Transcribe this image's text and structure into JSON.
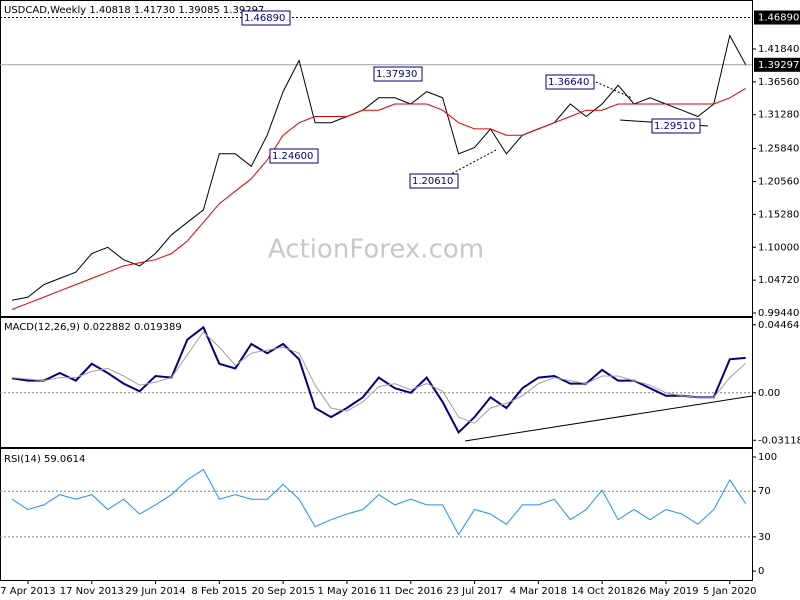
{
  "chart_data": [
    {
      "type": "line",
      "title": "USDCAD,Weekly  1.40818 1.41730 1.39085 1.39297",
      "watermark": "ActionForex.com",
      "categories": [
        null,
        "7 Apr 2013",
        null,
        null,
        null,
        "17 Nov 2013",
        null,
        null,
        null,
        "29 Jun 2014",
        null,
        null,
        null,
        "8 Feb 2015",
        null,
        null,
        null,
        "20 Sep 2015",
        null,
        null,
        null,
        "1 May 2016",
        null,
        null,
        null,
        "11 Dec 2016",
        null,
        null,
        null,
        "23 Jul 2017",
        null,
        null,
        null,
        "4 Mar 2018",
        null,
        null,
        null,
        "14 Oct 2018",
        null,
        null,
        null,
        "26 May 2019",
        null,
        null,
        null,
        "5 Jan 2020",
        null
      ],
      "series": [
        {
          "color": "#000000",
          "values": [
            1.015,
            1.02,
            1.04,
            1.05,
            1.06,
            1.09,
            1.1,
            1.08,
            1.07,
            1.09,
            1.12,
            1.14,
            1.16,
            1.25,
            1.25,
            1.23,
            1.28,
            1.35,
            1.4,
            1.3,
            1.3,
            1.31,
            1.32,
            1.34,
            1.34,
            1.33,
            1.35,
            1.34,
            1.25,
            1.26,
            1.29,
            1.25,
            1.28,
            1.29,
            1.3,
            1.33,
            1.31,
            1.33,
            1.36,
            1.33,
            1.34,
            1.33,
            1.32,
            1.31,
            1.33,
            1.44,
            1.39297
          ]
        },
        {
          "color": "#e00000",
          "values": [
            1.0,
            1.01,
            1.02,
            1.03,
            1.04,
            1.05,
            1.06,
            1.07,
            1.075,
            1.08,
            1.09,
            1.11,
            1.14,
            1.17,
            1.19,
            1.21,
            1.24,
            1.28,
            1.3,
            1.31,
            1.31,
            1.31,
            1.32,
            1.32,
            1.33,
            1.33,
            1.33,
            1.32,
            1.3,
            1.29,
            1.29,
            1.28,
            1.28,
            1.29,
            1.3,
            1.31,
            1.32,
            1.32,
            1.33,
            1.33,
            1.33,
            1.33,
            1.33,
            1.33,
            1.33,
            1.34,
            1.355
          ]
        }
      ],
      "ylim": [
        0.988,
        1.489
      ],
      "yticks": [
        {
          "value": 0.9944,
          "label": "0.99440"
        },
        {
          "value": 1.0472,
          "label": "1.04720"
        },
        {
          "value": 1.1,
          "label": "1.10000"
        },
        {
          "value": 1.1528,
          "label": "1.15280"
        },
        {
          "value": 1.2056,
          "label": "1.20560"
        },
        {
          "value": 1.2584,
          "label": "1.25840"
        },
        {
          "value": 1.3128,
          "label": "1.31280"
        },
        {
          "value": 1.3656,
          "label": "1.36560"
        },
        {
          "value": 1.4184,
          "label": "1.41840"
        }
      ],
      "highlight_ticks": [
        {
          "value": 1.4689,
          "label": "1.46890"
        },
        {
          "value": 1.39297,
          "label": "1.39297"
        }
      ],
      "annotations": [
        "1.46890",
        "1.37930",
        "1.36640",
        "1.24600",
        "1.20610",
        "1.29510"
      ],
      "grid": false
    },
    {
      "type": "line",
      "title": "MACD(12,26,9) 0.022882 0.019389",
      "series": [
        {
          "color": "#000080",
          "values": [
            0.0096,
            0.008,
            0.008,
            0.013,
            0.008,
            0.019,
            0.013,
            0.006,
            0.001,
            0.011,
            0.01,
            0.035,
            0.043,
            0.019,
            0.016,
            0.032,
            0.026,
            0.032,
            0.022,
            -0.01,
            -0.016,
            -0.01,
            -0.003,
            0.01,
            0.003,
            0.0,
            0.01,
            -0.006,
            -0.026,
            -0.016,
            -0.003,
            -0.01,
            0.003,
            0.01,
            0.011,
            0.006,
            0.006,
            0.015,
            0.008,
            0.008,
            0.003,
            -0.002,
            -0.002,
            -0.003,
            -0.003,
            0.022,
            0.022882
          ]
        },
        {
          "color": "#a0a0a0",
          "values": [
            0.01,
            0.009,
            0.008,
            0.01,
            0.01,
            0.014,
            0.016,
            0.011,
            0.005,
            0.007,
            0.01,
            0.025,
            0.04,
            0.03,
            0.018,
            0.026,
            0.028,
            0.03,
            0.026,
            0.005,
            -0.01,
            -0.012,
            -0.006,
            0.004,
            0.006,
            0.002,
            0.006,
            0.001,
            -0.016,
            -0.02,
            -0.01,
            -0.007,
            -0.002,
            0.006,
            0.01,
            0.008,
            0.006,
            0.011,
            0.011,
            0.008,
            0.005,
            0.0,
            -0.002,
            -0.003,
            -0.003,
            0.01,
            0.019389
          ]
        }
      ],
      "ylim": [
        -0.0356,
        0.0491
      ],
      "yticks": [
        0.044642,
        {
          "value": 0,
          "label": "0.00"
        },
        -0.031183
      ],
      "grid": true
    },
    {
      "type": "line",
      "title": "RSI(14) 59.0614",
      "series": [
        {
          "color": "#1e90ff",
          "values": [
            63,
            54,
            58,
            67,
            63,
            67,
            54,
            63,
            50,
            58,
            67,
            80,
            89,
            63,
            67,
            63,
            63,
            76,
            63,
            39,
            45,
            50,
            54,
            67,
            58,
            63,
            58,
            58,
            32,
            54,
            50,
            41,
            58,
            58,
            63,
            45,
            54,
            71,
            45,
            54,
            45,
            54,
            50,
            41,
            54,
            80,
            59.0614
          ]
        }
      ],
      "ylim": [
        -8.7,
        107
      ],
      "yticks": [
        100,
        70,
        30,
        0
      ],
      "grid": true
    }
  ]
}
